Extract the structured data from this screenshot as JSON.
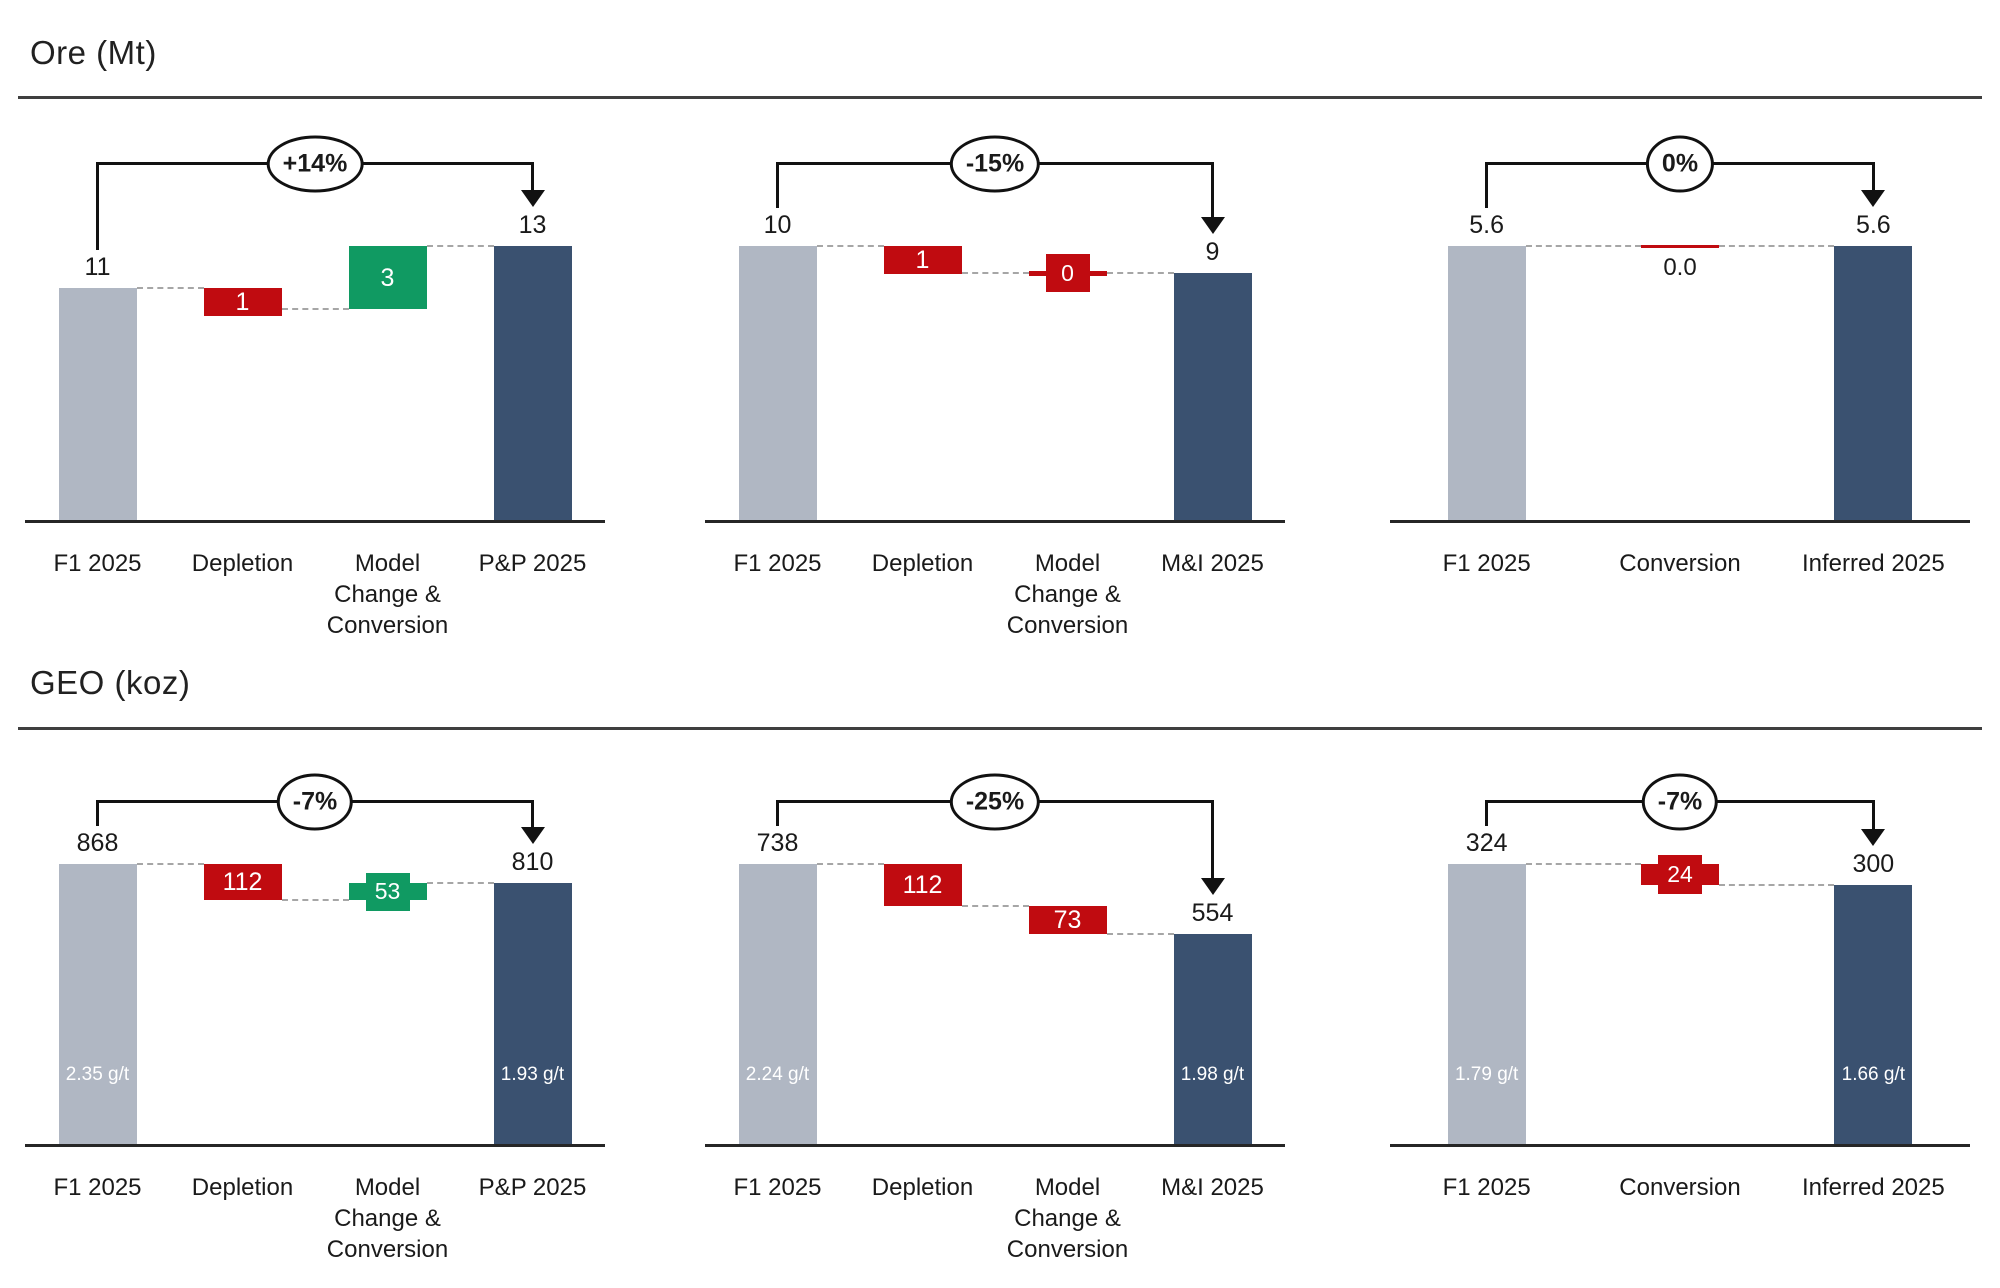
{
  "page_background": "#ffffff",
  "colors": {
    "base_bar": "#b0b7c3",
    "end_bar": "#3a5170",
    "decrease": "#c00b10",
    "increase": "#109a62",
    "connector": "#a6a6a6",
    "axis": "#262626",
    "bracket": "#111111",
    "text": "#1a1a1a"
  },
  "sections": [
    {
      "title": "Ore (Mt)"
    },
    {
      "title": "GEO (koz)"
    }
  ],
  "chart_data": [
    {
      "type": "waterfall",
      "section": "Ore (Mt)",
      "badge": "+14%",
      "columns": [
        {
          "label": "F1 2025",
          "role": "start",
          "value": 11,
          "display": "11"
        },
        {
          "label": "Depletion",
          "role": "delta",
          "change": "decrease",
          "value": 1,
          "display": "1",
          "style": "bar"
        },
        {
          "label": "Model Change & Conversion",
          "role": "delta",
          "change": "increase",
          "value": 3,
          "display": "3",
          "style": "bar"
        },
        {
          "label": "P&P 2025",
          "role": "end",
          "value": 13,
          "display": "13"
        }
      ]
    },
    {
      "type": "waterfall",
      "section": "Ore (Mt)",
      "badge": "-15%",
      "columns": [
        {
          "label": "F1 2025",
          "role": "start",
          "value": 10,
          "display": "10"
        },
        {
          "label": "Depletion",
          "role": "delta",
          "change": "decrease",
          "value": 1,
          "display": "1",
          "style": "bar"
        },
        {
          "label": "Model Change & Conversion",
          "role": "delta",
          "change": "decrease",
          "value": 0,
          "display": "0",
          "style": "marker"
        },
        {
          "label": "M&I 2025",
          "role": "end",
          "value": 9,
          "display": "9"
        }
      ]
    },
    {
      "type": "waterfall",
      "section": "Ore (Mt)",
      "badge": "0%",
      "columns": [
        {
          "label": "F1 2025",
          "role": "start",
          "value": 5.6,
          "display": "5.6"
        },
        {
          "label": "Conversion",
          "role": "delta",
          "change": "decrease",
          "value": 0,
          "display": "0.0",
          "style": "zero-line"
        },
        {
          "label": "Inferred 2025",
          "role": "end",
          "value": 5.6,
          "display": "5.6"
        }
      ]
    },
    {
      "type": "waterfall",
      "section": "GEO (koz)",
      "badge": "-7%",
      "columns": [
        {
          "label": "F1 2025",
          "role": "start",
          "value": 868,
          "display": "868",
          "grade": "2.35 g/t"
        },
        {
          "label": "Depletion",
          "role": "delta",
          "change": "decrease",
          "value": 112,
          "display": "112",
          "style": "bar"
        },
        {
          "label": "Model Change & Conversion",
          "role": "delta",
          "change": "increase",
          "value": 53,
          "display": "53",
          "style": "marker"
        },
        {
          "label": "P&P 2025",
          "role": "end",
          "value": 810,
          "display": "810",
          "grade": "1.93 g/t"
        }
      ]
    },
    {
      "type": "waterfall",
      "section": "GEO (koz)",
      "badge": "-25%",
      "columns": [
        {
          "label": "F1 2025",
          "role": "start",
          "value": 738,
          "display": "738",
          "grade": "2.24 g/t"
        },
        {
          "label": "Depletion",
          "role": "delta",
          "change": "decrease",
          "value": 112,
          "display": "112",
          "style": "bar"
        },
        {
          "label": "Model Change & Conversion",
          "role": "delta",
          "change": "decrease",
          "value": 73,
          "display": "73",
          "style": "bar"
        },
        {
          "label": "M&I 2025",
          "role": "end",
          "value": 554,
          "display": "554",
          "grade": "1.98 g/t"
        }
      ]
    },
    {
      "type": "waterfall",
      "section": "GEO (koz)",
      "badge": "-7%",
      "columns": [
        {
          "label": "F1 2025",
          "role": "start",
          "value": 324,
          "display": "324",
          "grade": "1.79 g/t"
        },
        {
          "label": "Conversion",
          "role": "delta",
          "change": "decrease",
          "value": 24,
          "display": "24",
          "style": "marker"
        },
        {
          "label": "Inferred 2025",
          "role": "end",
          "value": 300,
          "display": "300",
          "grade": "1.66 g/t"
        }
      ]
    }
  ]
}
